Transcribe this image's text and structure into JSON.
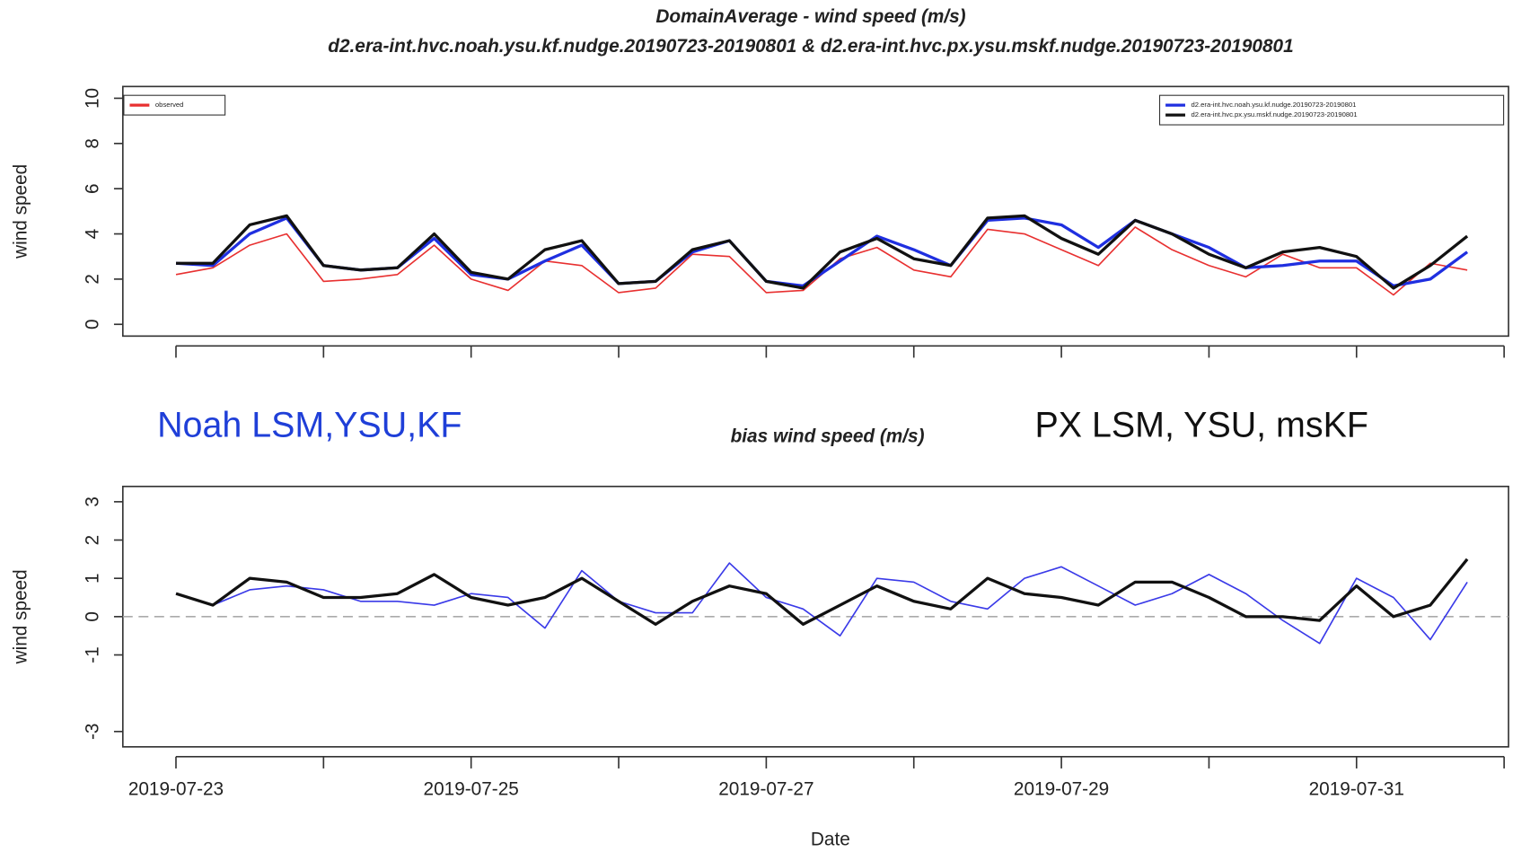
{
  "chart_data": [
    {
      "type": "line",
      "title": "DomainAverage  - wind speed (m/s)",
      "subtitle": "d2.era-int.hvc.noah.ysu.kf.nudge.20190723-20190801 & d2.era-int.hvc.px.ysu.mskf.nudge.20190723-20190801",
      "ylabel": "wind speed",
      "x": [
        0,
        0.25,
        0.5,
        0.75,
        1,
        1.25,
        1.5,
        1.75,
        2,
        2.25,
        2.5,
        2.75,
        3,
        3.25,
        3.5,
        3.75,
        4,
        4.25,
        4.5,
        4.75,
        5,
        5.25,
        5.5,
        5.75,
        6,
        6.25,
        6.5,
        6.75,
        7,
        7.25,
        7.5,
        7.75,
        8,
        8.25,
        8.5,
        8.75
      ],
      "series": [
        {
          "name": "observed",
          "color": "#e83030",
          "legend": "top-left",
          "width": 1.5,
          "values": [
            2.2,
            2.5,
            3.5,
            4.0,
            1.9,
            2.0,
            2.2,
            3.5,
            2.0,
            1.5,
            2.8,
            2.6,
            1.4,
            1.6,
            3.1,
            3.0,
            1.4,
            1.5,
            2.9,
            3.4,
            2.4,
            2.1,
            4.2,
            4.0,
            3.3,
            2.6,
            4.3,
            3.3,
            2.6,
            2.1,
            3.1,
            2.5,
            2.5,
            1.3,
            2.7,
            2.4
          ]
        },
        {
          "name": "d2.era-int.hvc.noah.ysu.kf.nudge.20190723-20190801",
          "color": "#1f2fe0",
          "legend": "top-right",
          "width": 3,
          "values": [
            2.7,
            2.6,
            4.0,
            4.7,
            2.6,
            2.4,
            2.5,
            3.8,
            2.2,
            2.0,
            2.8,
            3.5,
            1.8,
            1.9,
            3.2,
            3.7,
            1.9,
            1.7,
            2.8,
            3.9,
            3.3,
            2.6,
            4.6,
            4.7,
            4.4,
            3.4,
            4.6,
            4.0,
            3.4,
            2.5,
            2.6,
            2.8,
            2.8,
            1.7,
            2.0,
            3.2
          ]
        },
        {
          "name": "d2.era-int.hvc.px.ysu.mskf.nudge.20190723-20190801",
          "color": "#111111",
          "legend": "top-right",
          "width": 3,
          "values": [
            2.7,
            2.7,
            4.4,
            4.8,
            2.6,
            2.4,
            2.5,
            4.0,
            2.3,
            2.0,
            3.3,
            3.7,
            1.8,
            1.9,
            3.3,
            3.7,
            1.9,
            1.6,
            3.2,
            3.8,
            2.9,
            2.6,
            4.7,
            4.8,
            3.8,
            3.1,
            4.6,
            4.0,
            3.1,
            2.5,
            3.2,
            3.4,
            3.0,
            1.6,
            2.6,
            3.9
          ]
        }
      ],
      "xlim": [
        -0.36,
        9.03
      ],
      "xticks": [
        0,
        1,
        2,
        3,
        4,
        5,
        6,
        7,
        8,
        9
      ],
      "xtick_labels": false,
      "ylim": [
        -0.52,
        10.52
      ],
      "yticks": [
        0,
        2,
        4,
        6,
        8,
        10
      ]
    },
    {
      "type": "line",
      "title": "bias wind speed (m/s)",
      "xlabel": "Date",
      "ylabel": "wind speed",
      "annotations": [
        {
          "text": "Noah LSM,YSU,KF",
          "color": "#1f3fd8"
        },
        {
          "text": "PX LSM, YSU, msKF",
          "color": "#111111"
        }
      ],
      "x": [
        0,
        0.25,
        0.5,
        0.75,
        1,
        1.25,
        1.5,
        1.75,
        2,
        2.25,
        2.5,
        2.75,
        3,
        3.25,
        3.5,
        3.75,
        4,
        4.25,
        4.5,
        4.75,
        5,
        5.25,
        5.5,
        5.75,
        6,
        6.25,
        6.5,
        6.75,
        7,
        7.25,
        7.5,
        7.75,
        8,
        8.25,
        8.5,
        8.75
      ],
      "series": [
        {
          "color": "#3a3ae8",
          "width": 1.5,
          "values": [
            0.6,
            0.3,
            0.7,
            0.8,
            0.7,
            0.4,
            0.4,
            0.3,
            0.6,
            0.5,
            -0.3,
            1.2,
            0.4,
            0.1,
            0.1,
            1.4,
            0.5,
            0.2,
            -0.5,
            1.0,
            0.9,
            0.4,
            0.2,
            1.0,
            1.3,
            0.8,
            0.3,
            0.6,
            1.1,
            0.6,
            -0.1,
            -0.7,
            1.0,
            0.5,
            -0.6,
            0.9
          ]
        },
        {
          "color": "#111111",
          "width": 3,
          "values": [
            0.6,
            0.3,
            1.0,
            0.9,
            0.5,
            0.5,
            0.6,
            1.1,
            0.5,
            0.3,
            0.5,
            1.0,
            0.4,
            -0.2,
            0.4,
            0.8,
            0.6,
            -0.2,
            0.3,
            0.8,
            0.4,
            0.2,
            1.0,
            0.6,
            0.5,
            0.3,
            0.9,
            0.9,
            0.5,
            0.0,
            0.0,
            -0.1,
            0.8,
            0.0,
            0.3,
            1.5
          ]
        }
      ],
      "zero_line": true,
      "xlim": [
        -0.36,
        9.03
      ],
      "xticks": [
        {
          "value": 0,
          "label": "2019-07-23"
        },
        {
          "value": 2,
          "label": "2019-07-25"
        },
        {
          "value": 4,
          "label": "2019-07-27"
        },
        {
          "value": 6,
          "label": "2019-07-29"
        },
        {
          "value": 8,
          "label": "2019-07-31"
        }
      ],
      "xminor_ticks": [
        1,
        3,
        5,
        7,
        9
      ],
      "ylim": [
        -3.4,
        3.4
      ],
      "yticks": [
        3,
        2,
        1,
        0,
        -1,
        -3
      ]
    }
  ]
}
